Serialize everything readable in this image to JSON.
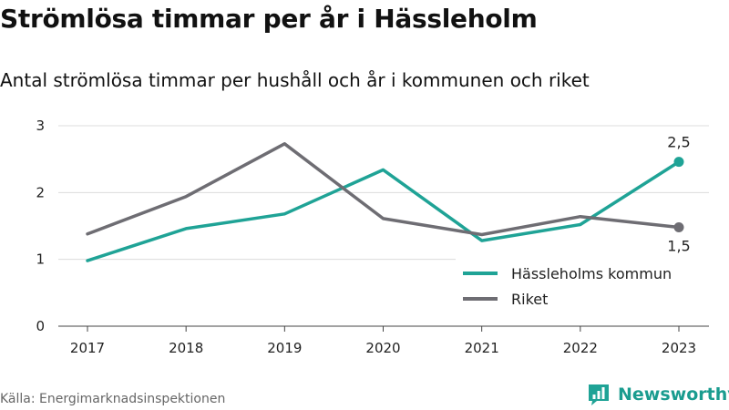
{
  "title": "Strömlösa timmar per år i Hässleholm",
  "subtitle": "Antal strömlösa timmar per hushåll och år i kommunen och riket",
  "source": "Källa: Energimarknadsinspektionen",
  "brand": "Newsworthy",
  "colors": {
    "teal": "#1fa396",
    "gray": "#6e6d73",
    "grid": "#dcdcdc",
    "axis": "#444444"
  },
  "chart_data": {
    "type": "line",
    "x": [
      "2017",
      "2018",
      "2019",
      "2020",
      "2021",
      "2022",
      "2023"
    ],
    "ylim": [
      0,
      3
    ],
    "yticks": [
      0,
      1,
      2,
      3
    ],
    "grid": true,
    "legend_position": "bottom-right",
    "series": [
      {
        "name": "Hässleholms kommun",
        "color": "#1fa396",
        "values": [
          0.98,
          1.46,
          1.68,
          2.34,
          1.28,
          1.52,
          2.46
        ],
        "end_label": "2,5"
      },
      {
        "name": "Riket",
        "color": "#6e6d73",
        "values": [
          1.38,
          1.94,
          2.73,
          1.61,
          1.37,
          1.64,
          1.48
        ],
        "end_label": "1,5"
      }
    ]
  }
}
